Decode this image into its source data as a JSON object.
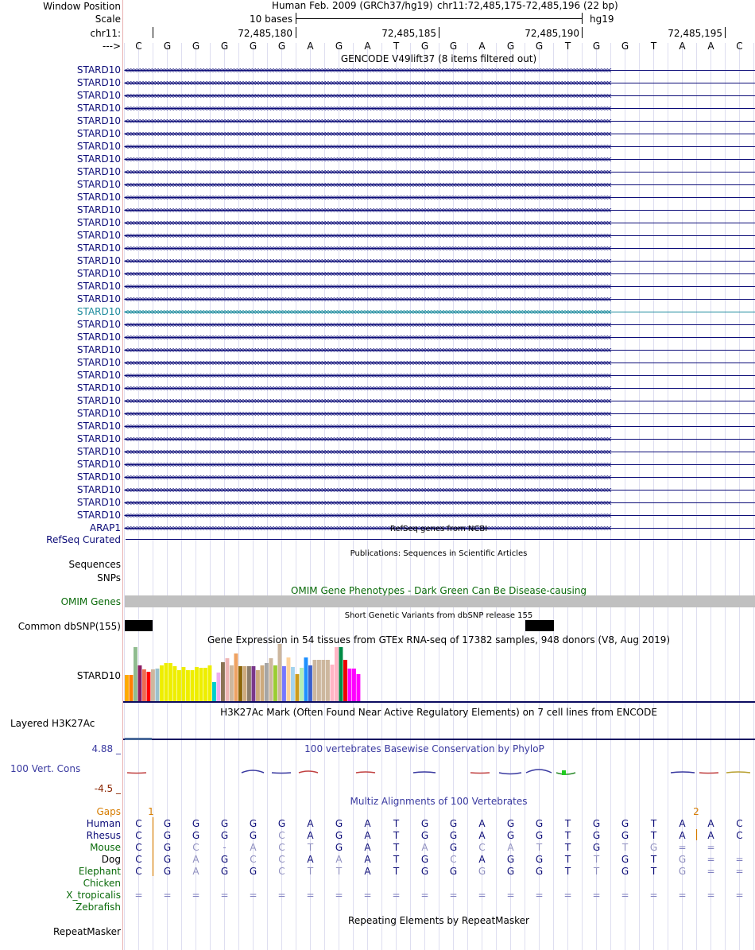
{
  "header": {
    "window_position_label": "Window Position",
    "scale_label": "Scale",
    "chrom_label": "chr11:",
    "strand_label": "--->",
    "assembly_text": "Human Feb. 2009 (GRCh37/hg19)",
    "position_text": "chr11:72,485,175-72,485,196 (22 bp)",
    "scale_text": "10 bases",
    "db_label": "hg19",
    "ticks": [
      "72,485,180",
      "72,485,185",
      "72,485,190",
      "72,485,195"
    ],
    "bases": [
      "C",
      "G",
      "G",
      "G",
      "G",
      "G",
      "A",
      "G",
      "A",
      "T",
      "G",
      "G",
      "A",
      "G",
      "G",
      "T",
      "G",
      "G",
      "T",
      "A",
      "A",
      "C"
    ]
  },
  "gencode": {
    "title": "GENCODE V49lift37 (8 items filtered out)",
    "genes": [
      "STARD10",
      "STARD10",
      "STARD10",
      "STARD10",
      "STARD10",
      "STARD10",
      "STARD10",
      "STARD10",
      "STARD10",
      "STARD10",
      "STARD10",
      "STARD10",
      "STARD10",
      "STARD10",
      "STARD10",
      "STARD10",
      "STARD10",
      "STARD10",
      "STARD10",
      "STARD10",
      "STARD10",
      "STARD10",
      "STARD10",
      "STARD10",
      "STARD10",
      "STARD10",
      "STARD10",
      "STARD10",
      "STARD10",
      "STARD10",
      "STARD10",
      "STARD10",
      "STARD10",
      "STARD10",
      "STARD10",
      "STARD10",
      "ARAP1"
    ],
    "highlight_index": 19,
    "colors": {
      "normal": "#0c0c78",
      "highlight": "#1b8a9c"
    }
  },
  "tracks": {
    "refseq_title": "RefSeq genes from NCBI",
    "refseq_label": "RefSeq Curated",
    "pubs_title": "Publications: Sequences in Scientific Articles",
    "sequences_label": "Sequences",
    "snps_label": "SNPs",
    "omim_title": "OMIM Gene Phenotypes - Dark Green Can Be Disease-causing",
    "omim_label": "OMIM Genes",
    "dbsnp_title": "Short Genetic Variants from dbSNP release 155",
    "dbsnp_label": "Common dbSNP(155)",
    "gtex_title": "Gene Expression in 54 tissues from GTEx RNA-seq of 17382 samples, 948 donors (V8, Aug 2019)",
    "gtex_label": "STARD10",
    "h3k_title": "H3K27Ac Mark (Often Found Near Active Regulatory Elements) on 7 cell lines from ENCODE",
    "h3k_label": "Layered H3K27Ac",
    "cons_title": "100 vertebrates Basewise Conservation by PhyloP",
    "cons_label": "100 Vert. Cons",
    "cons_max": "4.88 _",
    "cons_min": "-4.5 _",
    "multiz_title": "Multiz Alignments of 100 Vertebrates",
    "rmsk_title": "Repeating Elements by RepeatMasker",
    "rmsk_label": "RepeatMasker"
  },
  "gtex": {
    "values": [
      0.33,
      0.33,
      0.68,
      0.45,
      0.4,
      0.37,
      0.4,
      0.41,
      0.45,
      0.48,
      0.48,
      0.44,
      0.39,
      0.43,
      0.39,
      0.39,
      0.43,
      0.42,
      0.42,
      0.45,
      0.24,
      0.36,
      0.49,
      0.54,
      0.45,
      0.6,
      0.44,
      0.44,
      0.44,
      0.44,
      0.39,
      0.45,
      0.48,
      0.54,
      0.45,
      0.72,
      0.44,
      0.55,
      0.43,
      0.34,
      0.42,
      0.55,
      0.45,
      0.52,
      0.52,
      0.52,
      0.52,
      0.46,
      0.68,
      0.68,
      0.52,
      0.41,
      0.41,
      0.34
    ],
    "colors": [
      "#FFAA00",
      "#FF7F00",
      "#8FBC8F",
      "#8B1C62",
      "#EE6A50",
      "#FF0000",
      "#CDB79E",
      "#9AC0CD",
      "#EEEE00",
      "#EEEE00",
      "#EEEE00",
      "#EEEE00",
      "#EEEE00",
      "#EEEE00",
      "#EEEE00",
      "#EEEE00",
      "#EEEE00",
      "#EEEE00",
      "#EEEE00",
      "#EEEE00",
      "#00CDCD",
      "#EEAEEE",
      "#8B7355",
      "#EEB4B4",
      "#CDB79E",
      "#EEA262",
      "#8B6508",
      "#CDAA7D",
      "#8B7D6B",
      "#7A378B",
      "#CDAA7D",
      "#CDAA7D",
      "#A6A6A6",
      "#CDB79E",
      "#9ACD32",
      "#CDB79E",
      "#7777FF",
      "#FFD39B",
      "#A4D3EE",
      "#CD9B1D",
      "#B4EEB4",
      "#1E90FF",
      "#3A5FCD",
      "#CDB79E",
      "#CDB79E",
      "#CDB79E",
      "#CDB79E",
      "#FFB5C5",
      "#FFB5C5",
      "#008B45",
      "#EE0000",
      "#FF00FF",
      "#FF00FF",
      "#FF00FF"
    ]
  },
  "multiz": {
    "gaps_label": "Gaps",
    "gap_marks": [
      "1",
      "2"
    ],
    "species": [
      {
        "name": "Human",
        "bases": [
          "C",
          "G",
          "G",
          "G",
          "G",
          "G",
          "A",
          "G",
          "A",
          "T",
          "G",
          "G",
          "A",
          "G",
          "G",
          "T",
          "G",
          "G",
          "T",
          "A",
          "A",
          "C"
        ]
      },
      {
        "name": "Rhesus",
        "bases": [
          "C",
          "G",
          "G",
          "G",
          "G",
          "C",
          "A",
          "G",
          "A",
          "T",
          "G",
          "G",
          "A",
          "G",
          "G",
          "T",
          "G",
          "G",
          "T",
          "A",
          "A",
          "C"
        ]
      },
      {
        "name": "Mouse",
        "bases": [
          "C",
          "G",
          "C",
          "-",
          "A",
          "C",
          "T",
          "G",
          "A",
          "T",
          "A",
          "G",
          "C",
          "A",
          "T",
          "T",
          "G",
          "T",
          "G",
          "=",
          "=",
          ""
        ]
      },
      {
        "name": "Dog",
        "bases": [
          "C",
          "G",
          "A",
          "G",
          "C",
          "C",
          "A",
          "A",
          "A",
          "T",
          "G",
          "C",
          "A",
          "G",
          "G",
          "T",
          "T",
          "G",
          "T",
          "G",
          "=",
          "="
        ]
      },
      {
        "name": "Elephant",
        "bases": [
          "C",
          "G",
          "A",
          "G",
          "G",
          "C",
          "T",
          "T",
          "A",
          "T",
          "G",
          "G",
          "G",
          "G",
          "G",
          "T",
          "T",
          "G",
          "T",
          "G",
          "=",
          "="
        ]
      },
      {
        "name": "Chicken",
        "bases": []
      },
      {
        "name": "X_tropicalis",
        "bases": [
          "=",
          "=",
          "=",
          "=",
          "=",
          "=",
          "=",
          "=",
          "=",
          "=",
          "=",
          "=",
          "=",
          "=",
          "=",
          "=",
          "=",
          "=",
          "=",
          "=",
          "=",
          "="
        ]
      },
      {
        "name": "Zebrafish",
        "bases": []
      }
    ]
  },
  "colors": {
    "label_blue": "#0c0c78",
    "label_green": "#0b6b0b",
    "gaps_orange": "#d67c00",
    "cons_blue": "#3939a0",
    "cons_min_color": "#8b2500",
    "grid": "#c8c8e6",
    "sidebar_line": "#e8b0b0"
  }
}
